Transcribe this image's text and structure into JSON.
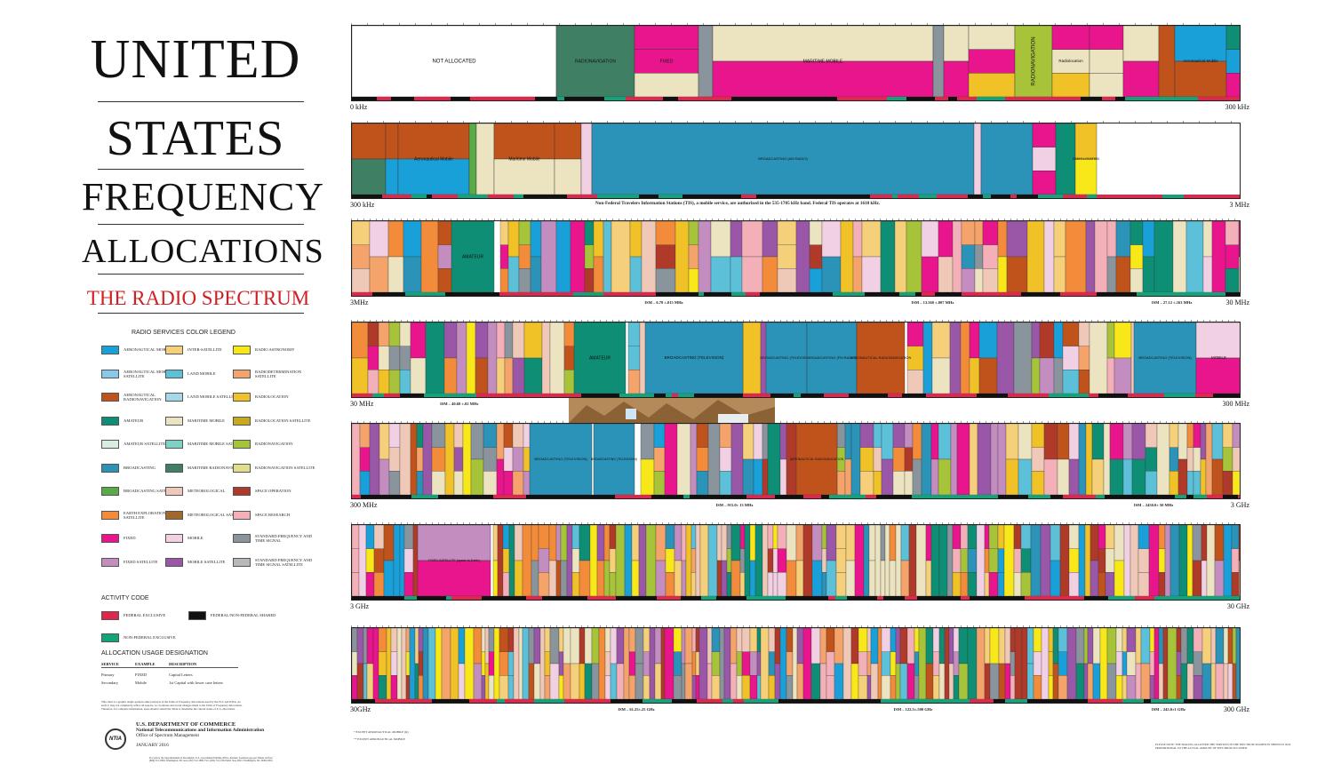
{
  "title": {
    "line1": "UNITED",
    "line2": "STATES",
    "line3": "FREQUENCY",
    "line4": "ALLOCATIONS",
    "subtitle": "THE RADIO SPECTRUM"
  },
  "legend": {
    "title": "RADIO SERVICES COLOR LEGEND",
    "items": [
      {
        "label": "AERONAUTICAL MOBILE",
        "color": "#1aa0d8"
      },
      {
        "label": "AERONAUTICAL MOBILE SATELLITE",
        "color": "#88c8ea"
      },
      {
        "label": "AERONAUTICAL RADIONAVIGATION",
        "color": "#c0531c"
      },
      {
        "label": "AMATEUR",
        "color": "#0e8e74"
      },
      {
        "label": "AMATEUR SATELLITE",
        "color": "#d9ece0"
      },
      {
        "label": "BROADCASTING",
        "color": "#2c93b8"
      },
      {
        "label": "BROADCASTING SATELLITE",
        "color": "#5aaa47"
      },
      {
        "label": "EARTH EXPLORATION SATELLITE",
        "color": "#f28c3a"
      },
      {
        "label": "FIXED",
        "color": "#e8158c"
      },
      {
        "label": "FIXED SATELLITE",
        "color": "#c38dc0"
      },
      {
        "label": "INTER-SATELLITE",
        "color": "#f5cf7a"
      },
      {
        "label": "LAND MOBILE",
        "color": "#5bc0d8"
      },
      {
        "label": "LAND MOBILE SATELLITE",
        "color": "#a6d8e8"
      },
      {
        "label": "MARITIME MOBILE",
        "color": "#ece3c0"
      },
      {
        "label": "MARITIME MOBILE SATELLITE",
        "color": "#7ed2c4"
      },
      {
        "label": "MARITIME RADIONAVIGATION",
        "color": "#3f8065"
      },
      {
        "label": "METEOROLOGICAL",
        "color": "#f0c8b8"
      },
      {
        "label": "METEOROLOGICAL SATELLITE",
        "color": "#a0682c"
      },
      {
        "label": "MOBILE",
        "color": "#f2d0e4"
      },
      {
        "label": "MOBILE SATELLITE",
        "color": "#9a57a8"
      },
      {
        "label": "RADIO ASTRONOMY",
        "color": "#f8e81a"
      },
      {
        "label": "RADIODETERMINATION SATELLITE",
        "color": "#f4a46a"
      },
      {
        "label": "RADIOLOCATION",
        "color": "#f0c228"
      },
      {
        "label": "RADIOLOCATION SATELLITE",
        "color": "#c8a820"
      },
      {
        "label": "RADIONAVIGATION",
        "color": "#a6c33a"
      },
      {
        "label": "RADIONAVIGATION SATELLITE",
        "color": "#e0e08a"
      },
      {
        "label": "SPACE OPERATION",
        "color": "#b03a2a"
      },
      {
        "label": "SPACE RESEARCH",
        "color": "#f4b0b8"
      },
      {
        "label": "STANDARD FREQUENCY AND TIME SIGNAL",
        "color": "#8a949c"
      },
      {
        "label": "STANDARD FREQUENCY AND TIME SIGNAL SATELLITE",
        "color": "#b8b8b8"
      }
    ]
  },
  "activity": {
    "title": "ACTIVITY CODE",
    "federal_exclusive": "FEDERAL EXCLUSIVE",
    "shared": "FEDERAL/NON-FEDERAL SHARED",
    "non_federal": "NON-FEDERAL EXCLUSIVE",
    "colors": {
      "federal": "#e0264a",
      "shared": "#111111",
      "non_federal": "#13a37a"
    }
  },
  "usage": {
    "title": "ALLOCATION USAGE DESIGNATION",
    "headers": [
      "SERVICE",
      "EXAMPLE",
      "DESCRIPTION"
    ],
    "rows": [
      [
        "Primary",
        "FIXED",
        "Capital Letters"
      ],
      [
        "Secondary",
        "Mobile",
        "1st Capital with lower case letters"
      ]
    ]
  },
  "fine_note": "This chart is a graphic single-point-in-time portrayal of the Table of Frequency Allocations used by the FCC and NTIA. As such, it may not completely reflect all aspects, i.e. footnotes and recent changes made to the Table of Frequency Allocations. Therefore, for complete information, users should consult the Table to determine the current status of U.S. allocations.",
  "publisher": {
    "logo": "NTIA",
    "dept": "U.S. DEPARTMENT OF COMMERCE",
    "agency": "National Telecommunications and Information Administration",
    "office": "Office of Spectrum Management",
    "date": "JANUARY 2016"
  },
  "tiny_footer": "For sale by the Superintendent of Documents, U.S. Government Printing Office. Internet: bookstore.gpo.gov  Phone toll free (866) 512-1800; Washington, DC area (202) 512-1800. Fax: (202) 512-2104  Mail: Stop IDCC Washington, DC 20402-0001",
  "bands": [
    {
      "left": "0 kHz",
      "right": "300 kHz"
    },
    {
      "left": "300 kHz",
      "right": "3 MHz"
    },
    {
      "left": "3MHz",
      "right": "30 MHz"
    },
    {
      "left": "30 MHz",
      "right": "300 MHz"
    },
    {
      "left": "300 MHz",
      "right": "3 GHz"
    },
    {
      "left": "3 GHz",
      "right": "30 GHz"
    },
    {
      "left": "30GHz",
      "right": "300 GHz"
    }
  ],
  "band1_labels": {
    "not_allocated": "NOT ALLOCATED",
    "radionavigation": "RADIONAVIGATION",
    "fixed": "FIXED",
    "maritime_mobile": "MARITIME MOBILE",
    "radionavigation_v": "RADIONAVIGATION",
    "radiolocation": "Radiolocation",
    "aeronautical_mobile": "Aeronautical Mobile",
    "aeronautical_radionavigation": "AERONAUTICAL RADIONAVIGATION"
  },
  "band2_labels": {
    "broadcasting": "BROADCASTING (AM RADIO)",
    "aeronautical_mobile": "Aeronautical Mobile",
    "maritime_mobile": "Maritime Mobile",
    "radiolocation": "RADIO-LOCATION"
  },
  "band2_note": "Non-Federal Travelers Information Stations (TIS), a mobile service, are authorized in the 535-1705 kHz band.  Federal TIS operates at 1610 kHz.",
  "band3_labels": {
    "amateur": "AMATEUR",
    "maritime_mobile": "MARITIME MOBILE",
    "fixed": "FIXED"
  },
  "band4_labels": {
    "amateur": "AMATEUR",
    "tv": "BROADCASTING (TELEVISION)",
    "fm": "BROADCASTING (FM RADIO)",
    "aero_rn": "AERONAUTICAL RADIONAVIGATION",
    "mobile": "MOBILE",
    "fixed": "FIXED"
  },
  "band5_labels": {
    "tv": "BROADCASTING (TELEVISION)",
    "aero_rn": "AERONAUTICAL RADIONAVIGATION",
    "radiolocation": "Radiolocation"
  },
  "band6_labels": {
    "fss": "FIXED-SATELLITE (space-to-Earth)",
    "fixed": "FIXED"
  },
  "ism": [
    {
      "band": 3,
      "text": "ISM – 6.78 ±.015 MHz",
      "pos": 0.36
    },
    {
      "band": 3,
      "text": "ISM – 13.560 ±.007 MHz",
      "pos": 0.66
    },
    {
      "band": 3,
      "text": "ISM – 27.12 ±.163 MHz",
      "pos": 0.93
    },
    {
      "band": 4,
      "text": "ISM – 40.68 ±.02 MHz",
      "pos": 0.13
    },
    {
      "band": 5,
      "text": "ISM – 915.0± 13 MHz",
      "pos": 0.44
    },
    {
      "band": 5,
      "text": "ISM – 2450.0± 50 MHz",
      "pos": 0.91
    },
    {
      "band": 7,
      "text": "ISM – 61.25±.25 GHz",
      "pos": 0.33
    },
    {
      "band": 7,
      "text": "ISM – 122.5±.500 GHz",
      "pos": 0.64
    },
    {
      "band": 7,
      "text": "ISM – 245.0±1 GHz",
      "pos": 0.93
    }
  ],
  "footnote_left": [
    "* EXCEPT AERONAUTICAL MOBILE (R)",
    "** EXCEPT AERONAUTICAL MOBILE"
  ],
  "footnote_right": "PLEASE NOTE: THE SPACING ALLOTTED THE SERVICES IN THE SPECTRUM SEGMENTS SHOWN IS NOT PROPORTIONAL TO THE ACTUAL AMOUNT OF SPECTRUM OCCUPIED."
}
